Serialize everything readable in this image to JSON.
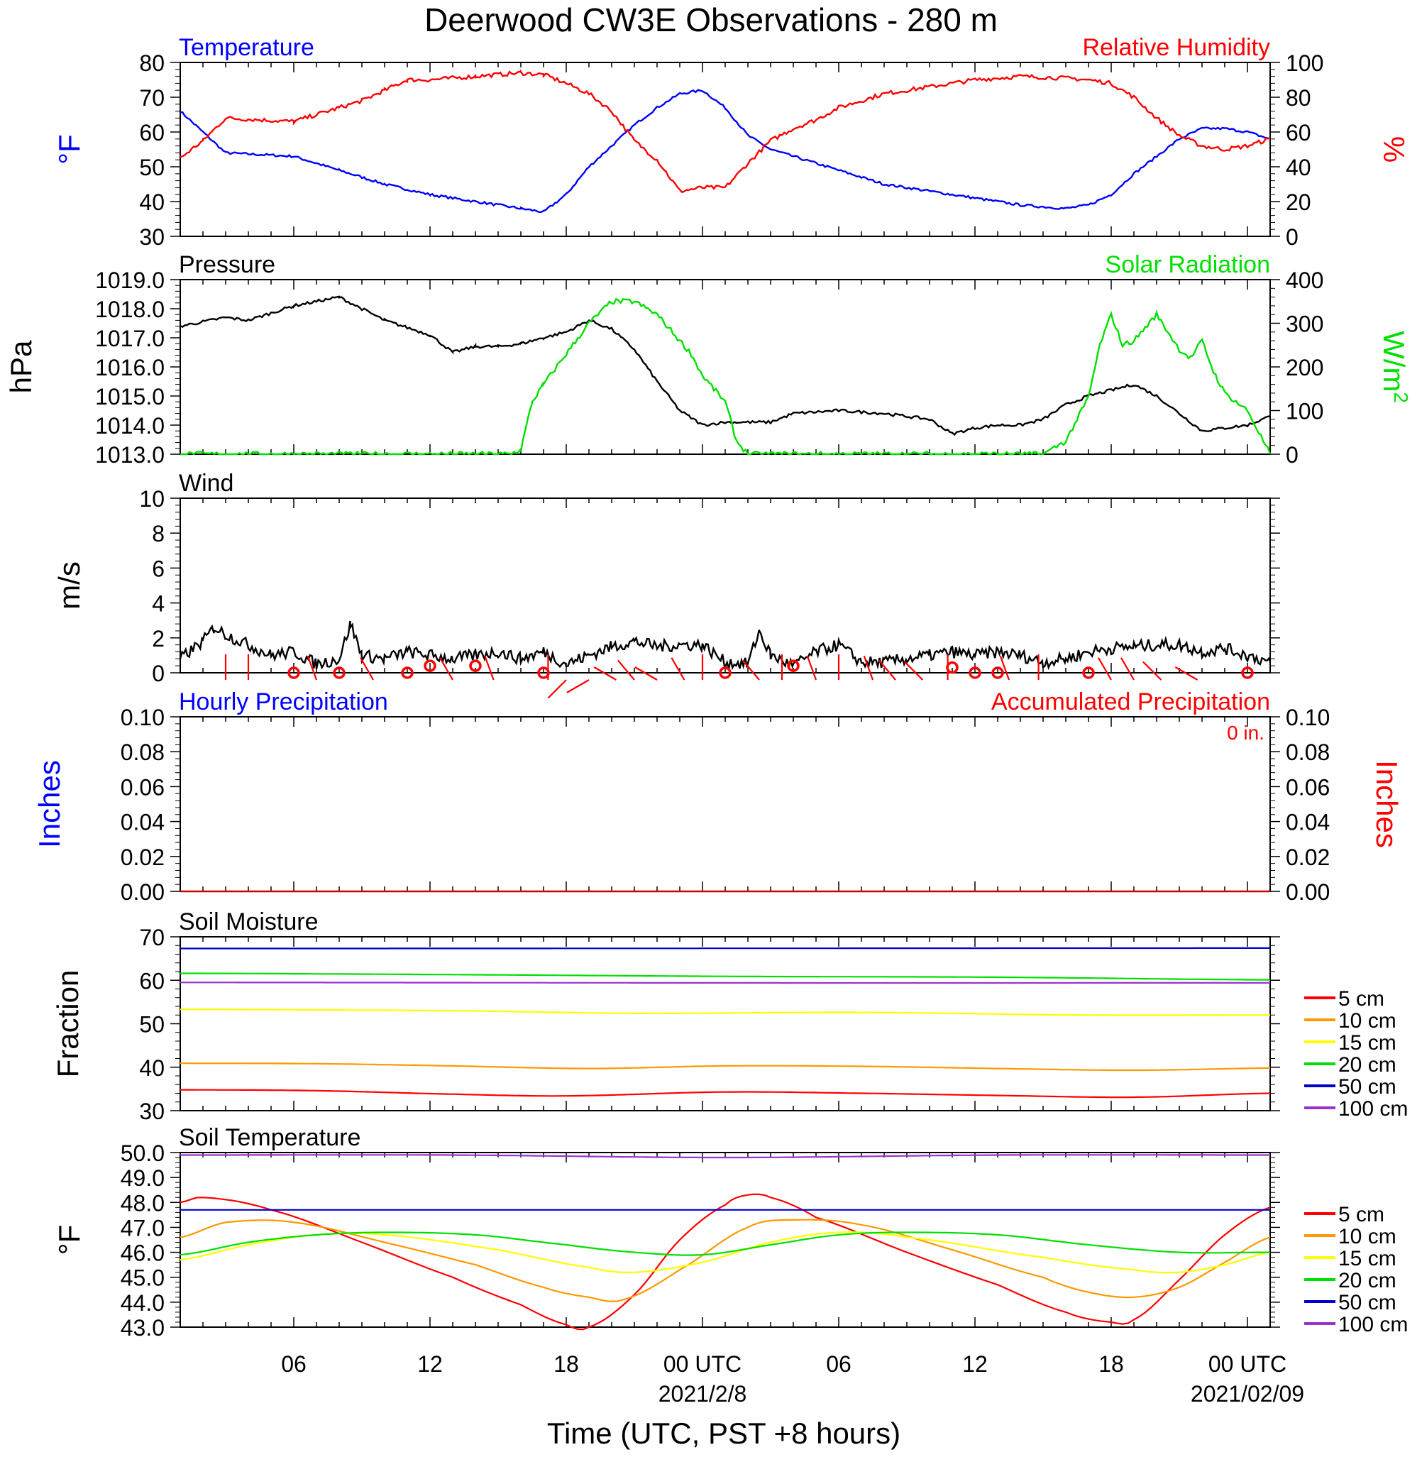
{
  "title": "Deerwood CW3E Observations - 280 m",
  "xaxis": {
    "ticks": [
      "06",
      "12",
      "18",
      "00 UTC",
      "06",
      "12",
      "18",
      "00 UTC"
    ],
    "date1": "2021/2/8",
    "date2": "2021/02/09",
    "label": "Time (UTC, PST +8 hours)"
  },
  "colors": {
    "blue": "#0000ff",
    "red": "#ff0000",
    "green": "#00e000",
    "black": "#000000",
    "orange": "#ff9900",
    "yellow": "#ffff00",
    "purple": "#9933cc"
  },
  "chart_data": [
    {
      "type": "line",
      "title_left": "Temperature",
      "title_right": "Relative Humidity",
      "ylabel_left": "°F",
      "ylabel_right": "%",
      "ylim_left": [
        30,
        80
      ],
      "ylim_right": [
        0,
        100
      ],
      "yticks_left": [
        "30",
        "40",
        "50",
        "60",
        "70",
        "80"
      ],
      "yticks_right": [
        "0",
        "20",
        "40",
        "60",
        "80",
        "100"
      ],
      "x_unit": "hours since 2021-02-07 01:00 UTC",
      "series": [
        {
          "name": "Temperature",
          "axis": "left",
          "color": "#0000ff",
          "x": [
            0,
            2,
            5,
            7,
            9,
            11,
            13,
            15,
            16,
            17,
            18,
            19,
            20,
            21,
            22,
            23,
            24,
            25,
            26,
            27,
            29,
            31,
            33,
            35,
            37,
            39,
            40,
            41,
            42,
            43,
            44,
            45,
            46,
            47,
            48
          ],
          "y": [
            66,
            54,
            53,
            49,
            45,
            42,
            40,
            38,
            37,
            42,
            50,
            56,
            62,
            67,
            71,
            72,
            67,
            59,
            55,
            53,
            49,
            45,
            43,
            41,
            39,
            38,
            39,
            42,
            48,
            53,
            58,
            61,
            61,
            60,
            58
          ]
        },
        {
          "name": "Relative Humidity",
          "axis": "right",
          "color": "#ff0000",
          "x": [
            0,
            1,
            2,
            5,
            7,
            8,
            9,
            10,
            11,
            13,
            15,
            16,
            17,
            18,
            19,
            20,
            21,
            22,
            23,
            24,
            25,
            26,
            27,
            28,
            29,
            31,
            33,
            35,
            37,
            39,
            40,
            41,
            42,
            43,
            44,
            45,
            46,
            47,
            48
          ],
          "y": [
            45,
            55,
            68,
            66,
            74,
            78,
            84,
            90,
            90,
            92,
            94,
            93,
            88,
            82,
            72,
            55,
            44,
            26,
            28,
            28,
            42,
            55,
            62,
            67,
            74,
            82,
            86,
            90,
            92,
            91,
            90,
            88,
            80,
            68,
            58,
            52,
            50,
            52,
            56
          ]
        }
      ]
    },
    {
      "type": "line",
      "title_left": "Pressure",
      "title_right": "Solar Radiation",
      "ylabel_left": "hPa",
      "ylabel_right": "W/m",
      "ylabel_right_sup": "2",
      "ylim_left": [
        1013,
        1019
      ],
      "ylim_right": [
        0,
        400
      ],
      "yticks_left": [
        "1013.0",
        "1014.0",
        "1015.0",
        "1016.0",
        "1017.0",
        "1018.0",
        "1019.0"
      ],
      "yticks_right": [
        "0",
        "100",
        "200",
        "300",
        "400"
      ],
      "x_unit": "hours since 2021-02-07 01:00 UTC",
      "series": [
        {
          "name": "Pressure",
          "axis": "left",
          "color": "#000000",
          "x": [
            0,
            2,
            3,
            5,
            7,
            9,
            11,
            12,
            13,
            14,
            15,
            16,
            17,
            18,
            19,
            20,
            21,
            22,
            23,
            24,
            25,
            26,
            27,
            29,
            31,
            33,
            34,
            35,
            36,
            37,
            38,
            39,
            40,
            41,
            42,
            43,
            44,
            45,
            46,
            47,
            48
          ],
          "y": [
            1017.4,
            1017.7,
            1017.6,
            1018.1,
            1018.4,
            1017.6,
            1017.1,
            1016.5,
            1016.7,
            1016.7,
            1016.8,
            1017.0,
            1017.2,
            1017.6,
            1017.3,
            1016.6,
            1015.5,
            1014.5,
            1014.0,
            1014.1,
            1014.1,
            1014.1,
            1014.4,
            1014.5,
            1014.4,
            1014.2,
            1013.7,
            1013.9,
            1014.0,
            1014.0,
            1014.2,
            1014.7,
            1015.0,
            1015.2,
            1015.4,
            1015.0,
            1014.4,
            1013.8,
            1013.9,
            1014.0,
            1014.3
          ]
        },
        {
          "name": "Solar Radiation",
          "axis": "right",
          "color": "#00e000",
          "x": [
            0,
            14.5,
            15,
            15.5,
            16,
            17,
            18,
            19,
            20,
            21,
            22,
            22.5,
            23,
            23.5,
            24,
            24.5,
            25,
            38,
            39,
            40,
            40.5,
            41,
            41.5,
            42,
            42.5,
            43,
            43.5,
            44,
            44.5,
            45,
            45.5,
            46,
            46.5,
            47,
            48
          ],
          "y": [
            0,
            0,
            10,
            120,
            160,
            230,
            300,
            350,
            350,
            320,
            260,
            230,
            180,
            150,
            120,
            30,
            0,
            0,
            30,
            130,
            250,
            320,
            250,
            260,
            290,
            320,
            280,
            240,
            220,
            260,
            190,
            140,
            120,
            100,
            0
          ]
        }
      ]
    },
    {
      "type": "line",
      "title_left": "Wind",
      "ylabel_left": "m/s",
      "ylim_left": [
        0,
        10
      ],
      "yticks_left": [
        "0",
        "2",
        "4",
        "6",
        "8",
        "10"
      ],
      "x_unit": "hours since 2021-02-07 01:00 UTC",
      "series": [
        {
          "name": "Wind",
          "axis": "left",
          "color": "#000000",
          "x": [
            0,
            1,
            1.5,
            2,
            3,
            4,
            5,
            6,
            7,
            7.5,
            8,
            9,
            10,
            11,
            12,
            13,
            14,
            15,
            16,
            17,
            18,
            19,
            20,
            21,
            22,
            23,
            24,
            25,
            25.5,
            26,
            27,
            28,
            29,
            30,
            31,
            32,
            33,
            34,
            35,
            36,
            37,
            38,
            39,
            40,
            41,
            42,
            43,
            44,
            45,
            46,
            47,
            48
          ],
          "y": [
            0.8,
            1.8,
            2.6,
            2.2,
            1.6,
            1.0,
            1.2,
            0.5,
            0.8,
            2.8,
            1.0,
            0.8,
            1.2,
            1.0,
            0.8,
            1.0,
            1.2,
            0.8,
            1.2,
            0.5,
            1.0,
            1.5,
            1.8,
            1.5,
            1.6,
            1.6,
            0.6,
            0.5,
            2.4,
            1.0,
            0.4,
            1.2,
            1.6,
            0.6,
            0.6,
            0.8,
            1.0,
            1.2,
            1.0,
            1.2,
            1.0,
            0.6,
            0.8,
            1.2,
            1.4,
            1.5,
            1.6,
            1.6,
            1.2,
            1.4,
            1.0,
            0.6
          ]
        }
      ],
      "wind_barbs": {
        "color": "#ff0000",
        "calm_x": [
          5,
          7,
          10,
          11,
          13,
          16,
          24,
          27,
          34,
          35,
          36,
          40,
          47
        ],
        "calm_y": [
          0,
          0,
          0,
          0.4,
          0.4,
          0,
          0,
          0.4,
          0.3,
          0,
          0,
          0,
          0
        ],
        "staff_x": [
          2,
          3,
          6,
          8.5,
          12,
          13.8,
          16.2,
          17,
          18,
          19.2,
          20,
          21,
          22.2,
          23,
          25.5,
          26.5,
          28,
          29,
          30.5,
          31.5,
          32.7,
          33.8,
          36.5,
          37.8,
          41,
          42,
          43.2,
          44.8
        ],
        "dir_deg": [
          0,
          0,
          20,
          30,
          30,
          20,
          0,
          135,
          120,
          60,
          40,
          60,
          30,
          0,
          40,
          0,
          20,
          0,
          20,
          40,
          45,
          0,
          20,
          0,
          30,
          30,
          45,
          60
        ]
      }
    },
    {
      "type": "line",
      "title_left": "Hourly Precipitation",
      "title_right": "Accumulated Precipitation",
      "annotation": "0 in.",
      "ylabel_left": "Inches",
      "ylabel_right": "Inches",
      "ylim_left": [
        0,
        0.1
      ],
      "ylim_right": [
        0,
        0.1
      ],
      "yticks_left": [
        "0.00",
        "0.02",
        "0.04",
        "0.06",
        "0.08",
        "0.10"
      ],
      "yticks_right": [
        "0.00",
        "0.02",
        "0.04",
        "0.06",
        "0.08",
        "0.10"
      ],
      "x_unit": "hours since 2021-02-07 01:00 UTC",
      "series": [
        {
          "name": "Accumulated Precipitation",
          "axis": "left",
          "color": "#cc0000",
          "x": [
            0,
            48
          ],
          "y": [
            0,
            0
          ]
        }
      ]
    },
    {
      "type": "line",
      "title_left": "Soil Moisture",
      "ylabel_left": "Fraction",
      "ylim_left": [
        30,
        70
      ],
      "yticks_left": [
        "30",
        "40",
        "50",
        "60",
        "70"
      ],
      "legend": [
        "5 cm",
        "10 cm",
        "15 cm",
        "20 cm",
        "50 cm",
        "100 cm"
      ],
      "legend_position": "right",
      "x_unit": "hours since 2021-02-07 01:00 UTC",
      "series": [
        {
          "name": "5 cm",
          "axis": "left",
          "color": "#ff0000",
          "x": [
            0,
            6,
            12,
            17,
            24,
            30,
            36,
            42,
            48
          ],
          "y": [
            34.8,
            34.6,
            33.8,
            33.4,
            34.3,
            34.0,
            33.5,
            33.1,
            34.0
          ]
        },
        {
          "name": "10 cm",
          "axis": "left",
          "color": "#ff9900",
          "x": [
            0,
            6,
            12,
            18,
            24,
            30,
            36,
            42,
            48
          ],
          "y": [
            40.9,
            40.8,
            40.3,
            39.7,
            40.3,
            40.2,
            39.7,
            39.3,
            39.8
          ]
        },
        {
          "name": "15 cm",
          "axis": "left",
          "color": "#ffff00",
          "x": [
            0,
            12,
            20,
            30,
            40,
            48
          ],
          "y": [
            53.3,
            53.0,
            52.4,
            52.6,
            52.0,
            52.0
          ]
        },
        {
          "name": "20 cm",
          "axis": "left",
          "color": "#00e000",
          "x": [
            0,
            12,
            24,
            36,
            48
          ],
          "y": [
            61.6,
            61.3,
            60.9,
            60.7,
            60.1
          ]
        },
        {
          "name": "50 cm",
          "axis": "left",
          "color": "#0000cc",
          "x": [
            0,
            48
          ],
          "y": [
            67.3,
            67.4
          ]
        },
        {
          "name": "100 cm",
          "axis": "left",
          "color": "#9933cc",
          "x": [
            0,
            24,
            48
          ],
          "y": [
            59.5,
            59.4,
            59.4
          ]
        }
      ]
    },
    {
      "type": "line",
      "title_left": "Soil Temperature",
      "ylabel_left": "°F",
      "ylim_left": [
        43,
        50
      ],
      "yticks_left": [
        "43.0",
        "44.0",
        "45.0",
        "46.0",
        "47.0",
        "48.0",
        "49.0",
        "50.0"
      ],
      "legend": [
        "5 cm",
        "10 cm",
        "15 cm",
        "20 cm",
        "50 cm",
        "100 cm"
      ],
      "legend_position": "right",
      "x_unit": "hours since 2021-02-07 01:00 UTC",
      "series": [
        {
          "name": "5 cm",
          "axis": "left",
          "color": "#ff0000",
          "x": [
            0,
            1,
            4,
            8,
            12,
            15,
            17,
            18,
            20,
            22,
            24,
            25,
            26,
            28,
            32,
            36,
            39,
            41,
            42,
            44,
            46,
            48
          ],
          "y": [
            48.0,
            48.2,
            47.7,
            46.4,
            45.0,
            43.9,
            43.1,
            43.0,
            44.3,
            46.5,
            47.9,
            48.3,
            48.2,
            47.4,
            46.0,
            44.7,
            43.6,
            43.2,
            43.3,
            44.9,
            46.7,
            47.8
          ]
        },
        {
          "name": "10 cm",
          "axis": "left",
          "color": "#ff9900",
          "x": [
            0,
            2,
            5,
            9,
            13,
            16,
            18,
            19.5,
            22,
            25,
            27,
            30,
            34,
            38,
            40,
            42,
            44,
            46,
            48
          ],
          "y": [
            46.6,
            47.2,
            47.2,
            46.4,
            45.5,
            44.6,
            44.2,
            44.1,
            45.3,
            47.0,
            47.3,
            47.1,
            46.1,
            45.0,
            44.4,
            44.2,
            44.6,
            45.6,
            46.6
          ]
        },
        {
          "name": "15 cm",
          "axis": "left",
          "color": "#ffff00",
          "x": [
            0,
            3,
            6,
            9,
            14,
            18,
            20,
            23,
            26,
            29,
            32,
            38,
            42,
            44,
            46,
            48
          ],
          "y": [
            45.7,
            46.3,
            46.7,
            46.7,
            46.1,
            45.4,
            45.2,
            45.6,
            46.4,
            46.8,
            46.6,
            45.8,
            45.3,
            45.2,
            45.5,
            46.0
          ]
        },
        {
          "name": "20 cm",
          "axis": "left",
          "color": "#00e000",
          "x": [
            0,
            3,
            6,
            9,
            13,
            17,
            20,
            23,
            26,
            29,
            32,
            36,
            40,
            44,
            48
          ],
          "y": [
            45.9,
            46.4,
            46.7,
            46.8,
            46.7,
            46.3,
            46.0,
            45.9,
            46.3,
            46.7,
            46.8,
            46.7,
            46.3,
            46.0,
            46.0
          ]
        },
        {
          "name": "50 cm",
          "axis": "left",
          "color": "#0000cc",
          "x": [
            0,
            12,
            24,
            36,
            48
          ],
          "y": [
            47.7,
            47.7,
            47.7,
            47.7,
            47.7
          ]
        },
        {
          "name": "100 cm",
          "axis": "left",
          "color": "#9933cc",
          "x": [
            0,
            12,
            24,
            36,
            48
          ],
          "y": [
            49.9,
            49.9,
            49.8,
            49.9,
            49.9
          ]
        }
      ]
    }
  ]
}
